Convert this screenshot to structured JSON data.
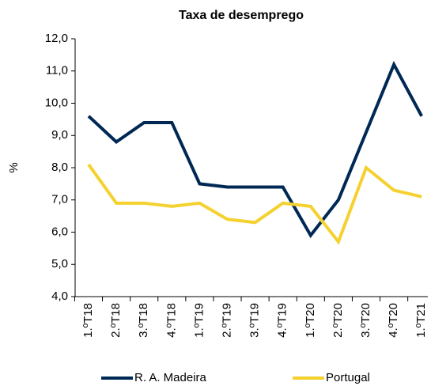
{
  "chart_data": {
    "type": "line",
    "title": "Taxa de desemprego",
    "y_label": "%",
    "categories": [
      "1.ºT18",
      "2.ºT18",
      "3.ºT18",
      "4.ºT18",
      "1.ºT19",
      "2.ºT19",
      "3.ºT19",
      "4.ºT19",
      "1.ºT20",
      "2.ºT20",
      "3.ºT20",
      "4.ºT20",
      "1.ºT21"
    ],
    "series": [
      {
        "name": "R. A. Madeira",
        "color": "#002855",
        "values": [
          9.6,
          8.8,
          9.4,
          9.4,
          7.5,
          7.4,
          7.4,
          7.4,
          5.9,
          7.0,
          9.1,
          11.2,
          9.6
        ]
      },
      {
        "name": "Portugal",
        "color": "#f5d130",
        "values": [
          8.1,
          6.9,
          6.9,
          6.8,
          6.9,
          6.4,
          6.3,
          6.9,
          6.8,
          5.7,
          8.0,
          7.3,
          7.1
        ]
      }
    ],
    "ylim": [
      4,
      12
    ],
    "yticks": [
      {
        "value": 4,
        "label": "4,0"
      },
      {
        "value": 5,
        "label": "5,0"
      },
      {
        "value": 6,
        "label": "6,0"
      },
      {
        "value": 7,
        "label": "7,0"
      },
      {
        "value": 8,
        "label": "8,0"
      },
      {
        "value": 9,
        "label": "9,0"
      },
      {
        "value": 10,
        "label": "10,0"
      },
      {
        "value": 11,
        "label": "11,0"
      },
      {
        "value": 12,
        "label": "12,0"
      }
    ],
    "legend": "bottom"
  }
}
